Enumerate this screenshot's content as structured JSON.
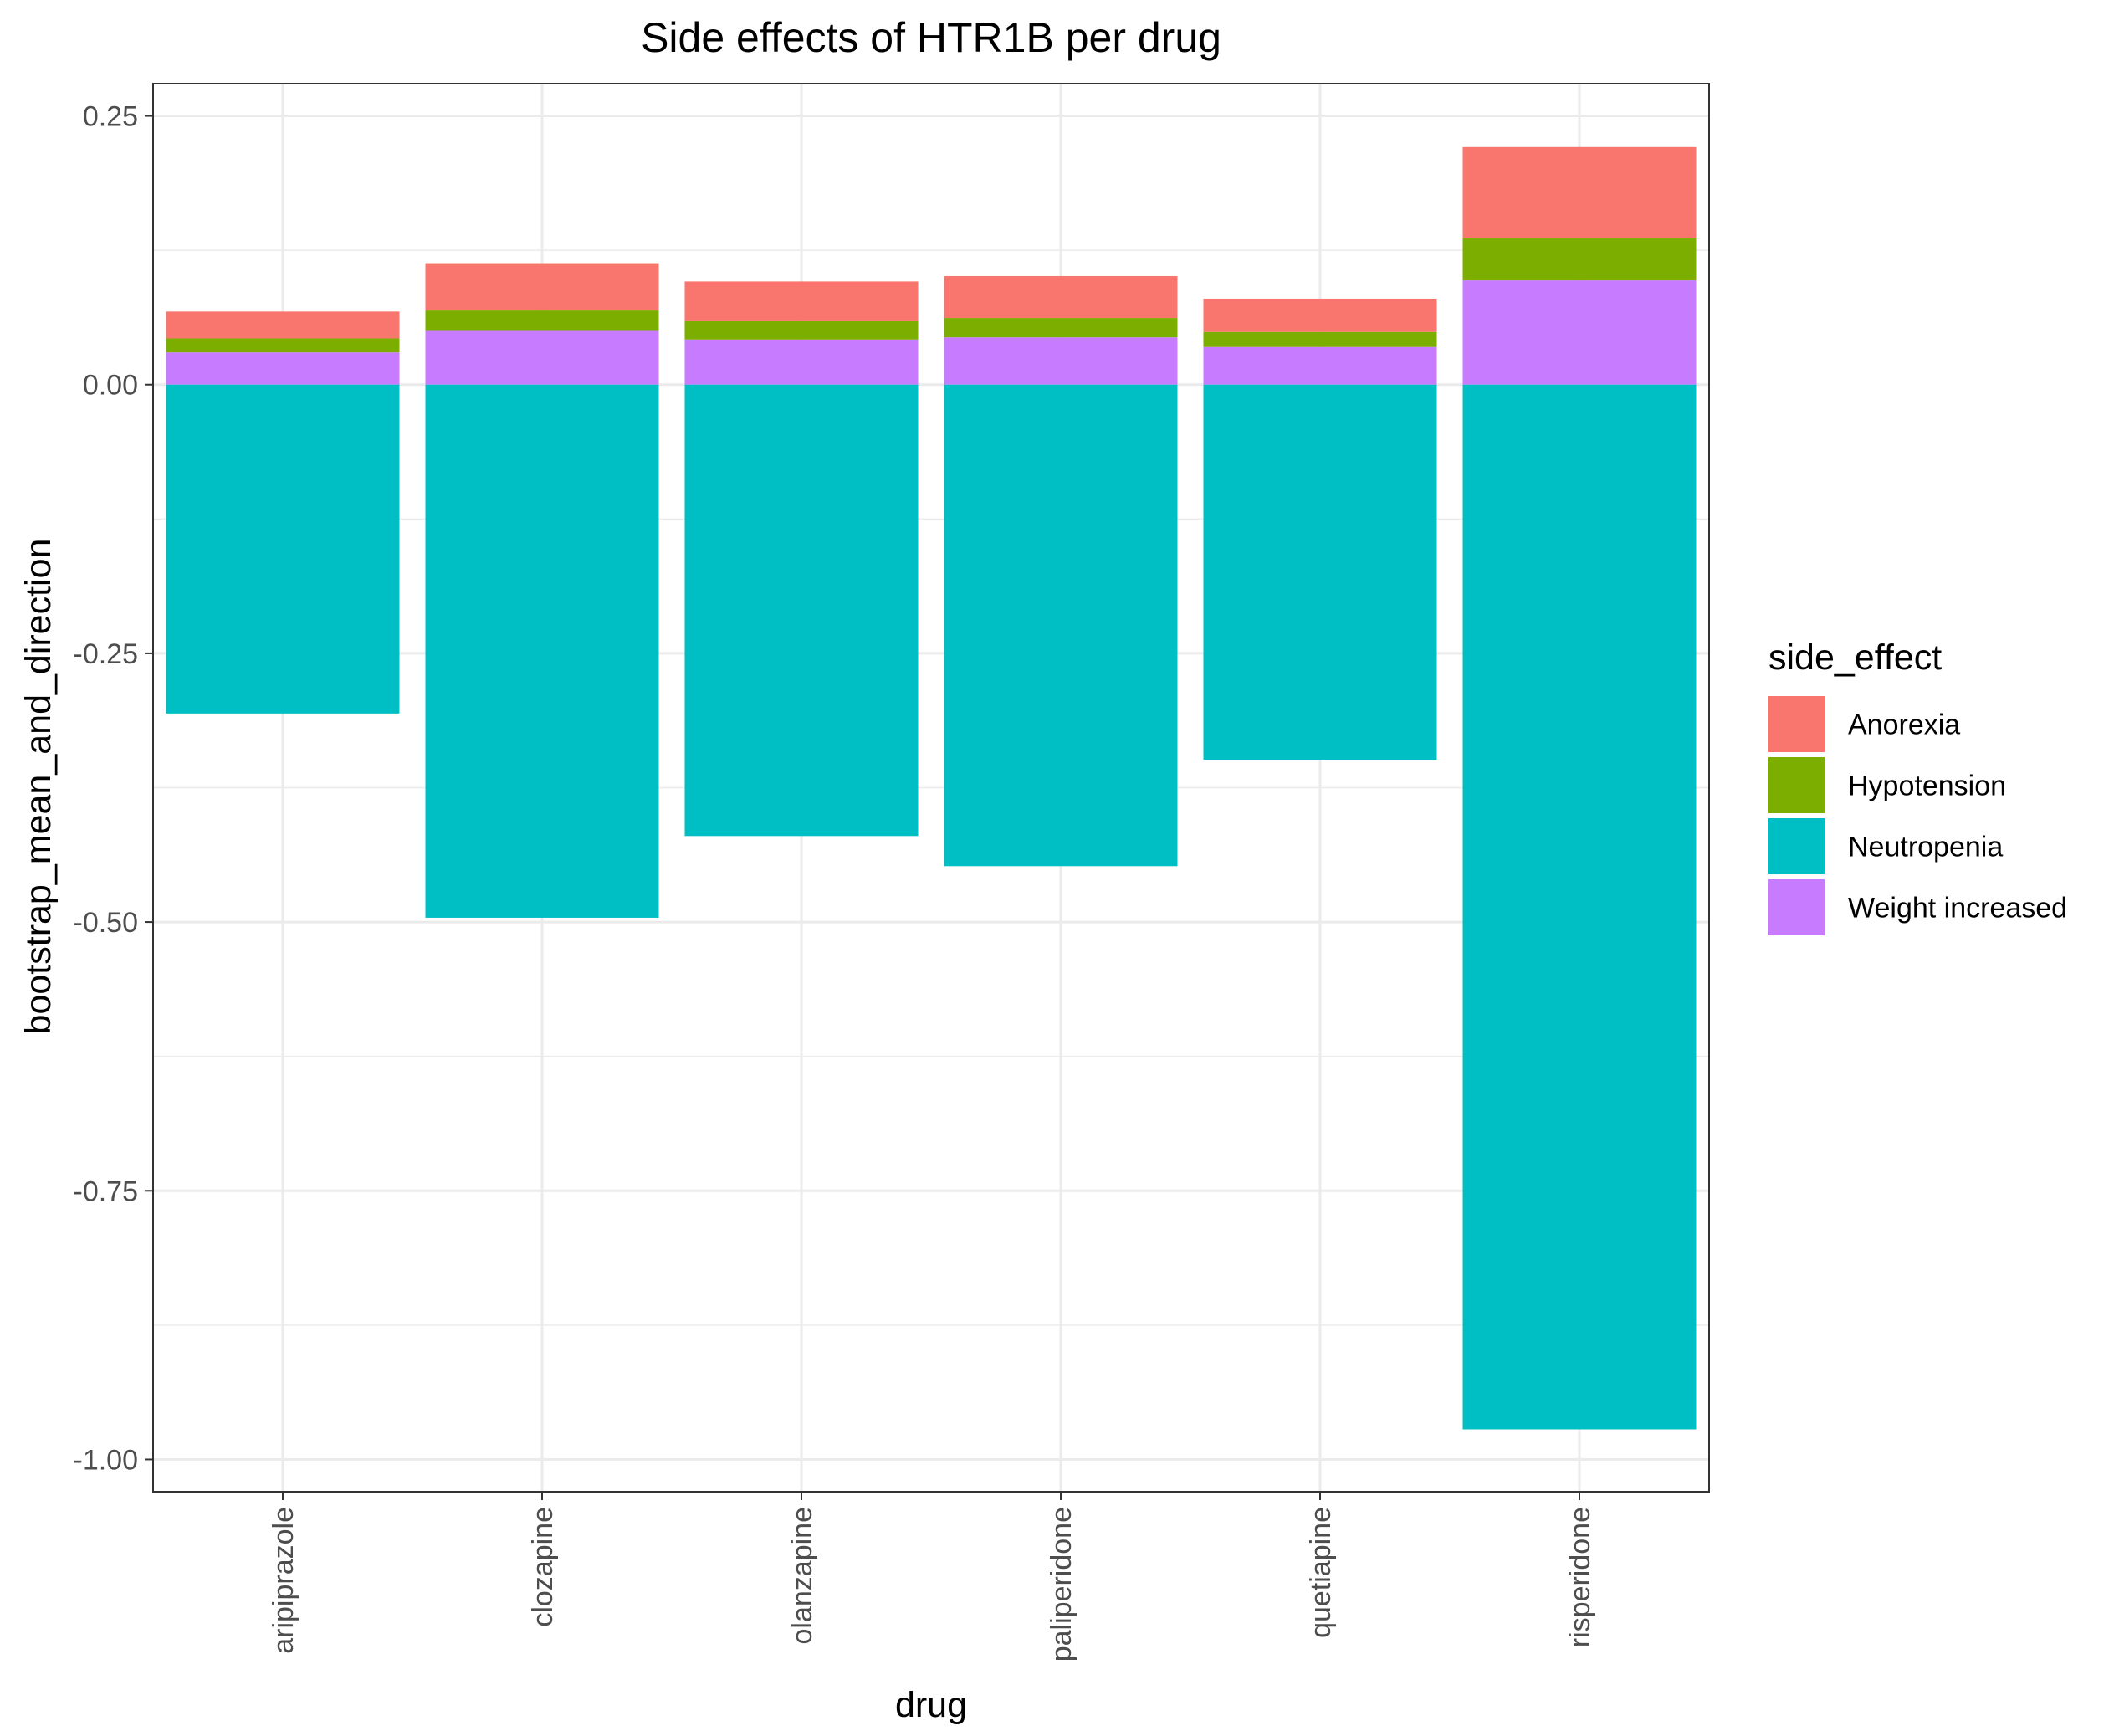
{
  "chart_data": {
    "type": "bar",
    "stacked": true,
    "title": "Side effects of HTR1B per drug",
    "xlabel": "drug",
    "ylabel": "bootstrap_mean_and_direction",
    "ylim": [
      -1.03,
      0.28
    ],
    "yticks": [
      0.25,
      0.0,
      -0.25,
      -0.5,
      -0.75,
      -1.0
    ],
    "ytick_labels": [
      "0.25",
      "0.00",
      "-0.25",
      "-0.50",
      "-0.75",
      "-1.00"
    ],
    "grid": true,
    "legend_position": "right",
    "legend_title": "side_effect",
    "categories": [
      "aripiprazole",
      "clozapine",
      "olanzapine",
      "paliperidone",
      "quetiapine",
      "risperidone"
    ],
    "series": [
      {
        "name": "Anorexia",
        "color": "#F8766D",
        "values": [
          0.025,
          0.044,
          0.037,
          0.039,
          0.031,
          0.085
        ]
      },
      {
        "name": "Hypotension",
        "color": "#7CAE00",
        "values": [
          0.013,
          0.019,
          0.017,
          0.018,
          0.014,
          0.039
        ]
      },
      {
        "name": "Neutropenia",
        "color": "#00BFC4",
        "values": [
          -0.306,
          -0.496,
          -0.42,
          -0.448,
          -0.349,
          -0.972
        ]
      },
      {
        "name": "Weight increased",
        "color": "#C77CFF",
        "values": [
          0.03,
          0.05,
          0.042,
          0.044,
          0.035,
          0.097
        ]
      }
    ]
  }
}
